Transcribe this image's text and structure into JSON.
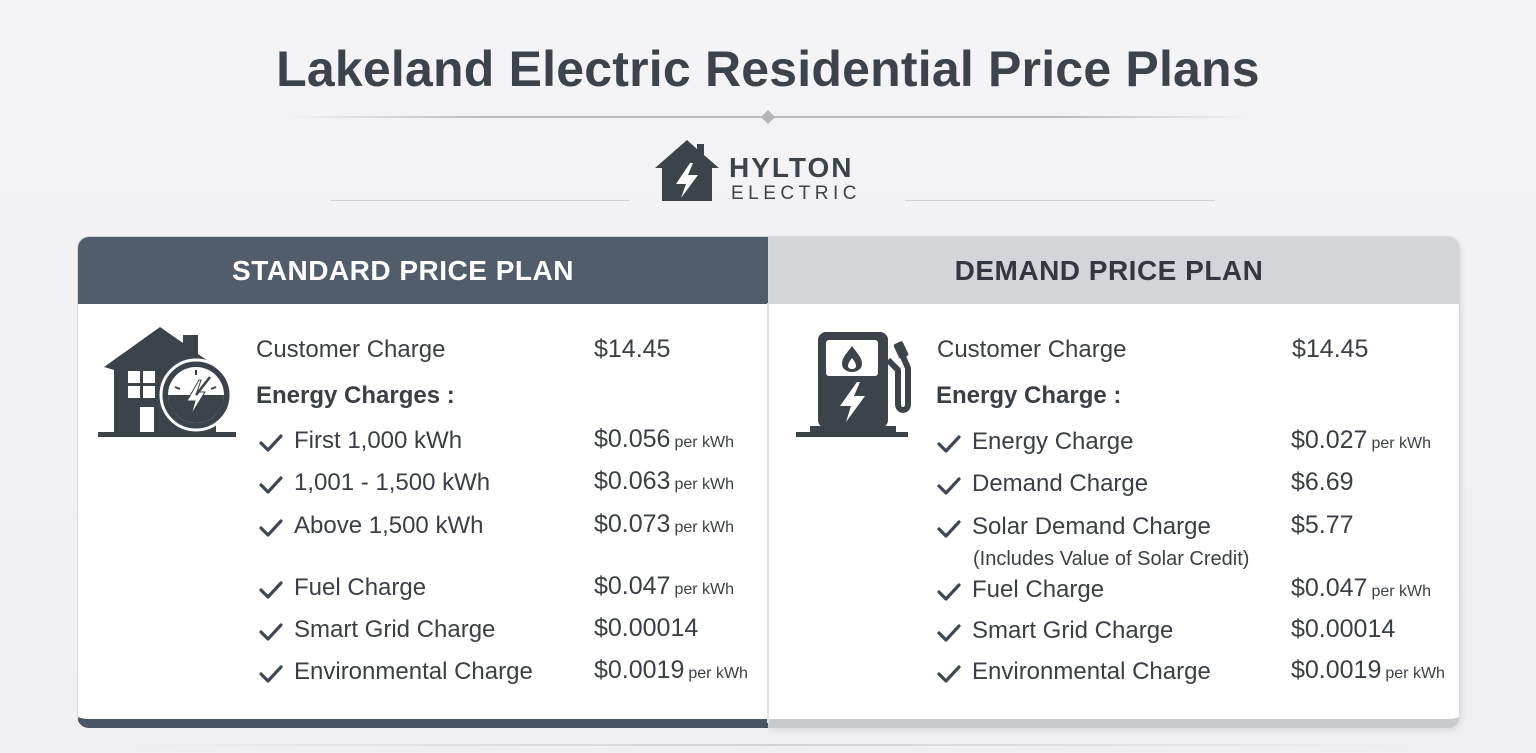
{
  "page": {
    "title": "Lakeland Electric Residential Price Plans"
  },
  "logo": {
    "name": "HYLTON",
    "sub": "ELECTRIC",
    "icon": "house-lightning-icon"
  },
  "colors": {
    "standard_header": "#525d6b",
    "demand_header": "#d4d5d8",
    "text": "#3a3f47",
    "check": "#3e4753"
  },
  "standard": {
    "title": "STANDARD PRICE PLAN",
    "icon": "house-meter-icon",
    "customer_label": "Customer Charge",
    "customer_amount": "$14.45",
    "energy_heading": "Energy Charges :",
    "tiers": [
      {
        "label": "First 1,000 kWh",
        "amount": "$0.056",
        "unit": "per kWh"
      },
      {
        "label": "1,001 - 1,500 kWh",
        "amount": "$0.063",
        "unit": "per kWh"
      },
      {
        "label": "Above 1,500 kWh",
        "amount": "$0.073",
        "unit": "per kWh"
      }
    ],
    "extras": [
      {
        "label": "Fuel Charge",
        "amount": "$0.047",
        "unit": "per kWh"
      },
      {
        "label": "Smart Grid Charge",
        "amount": "$0.00014",
        "unit": ""
      },
      {
        "label": "Environmental Charge",
        "amount": "$0.0019",
        "unit": "per kWh"
      }
    ]
  },
  "demand": {
    "title": "DEMAND PRICE PLAN",
    "icon": "fuel-pump-lightning-icon",
    "customer_label": "Customer Charge",
    "customer_amount": "$14.45",
    "energy_heading": "Energy Charge :",
    "items": [
      {
        "label": "Energy Charge",
        "amount": "$0.027",
        "unit": "per kWh"
      },
      {
        "label": "Demand Charge",
        "amount": "$6.69",
        "unit": ""
      },
      {
        "label": "Solar Demand Charge",
        "amount": "$5.77",
        "unit": ""
      },
      {
        "label": "Fuel Charge",
        "amount": "$0.047",
        "unit": "per kWh"
      },
      {
        "label": "Smart Grid Charge",
        "amount": "$0.00014",
        "unit": ""
      },
      {
        "label": "Environmental Charge",
        "amount": "$0.0019",
        "unit": "per kWh"
      }
    ],
    "solar_note": "(Includes Value of Solar Credit)"
  }
}
